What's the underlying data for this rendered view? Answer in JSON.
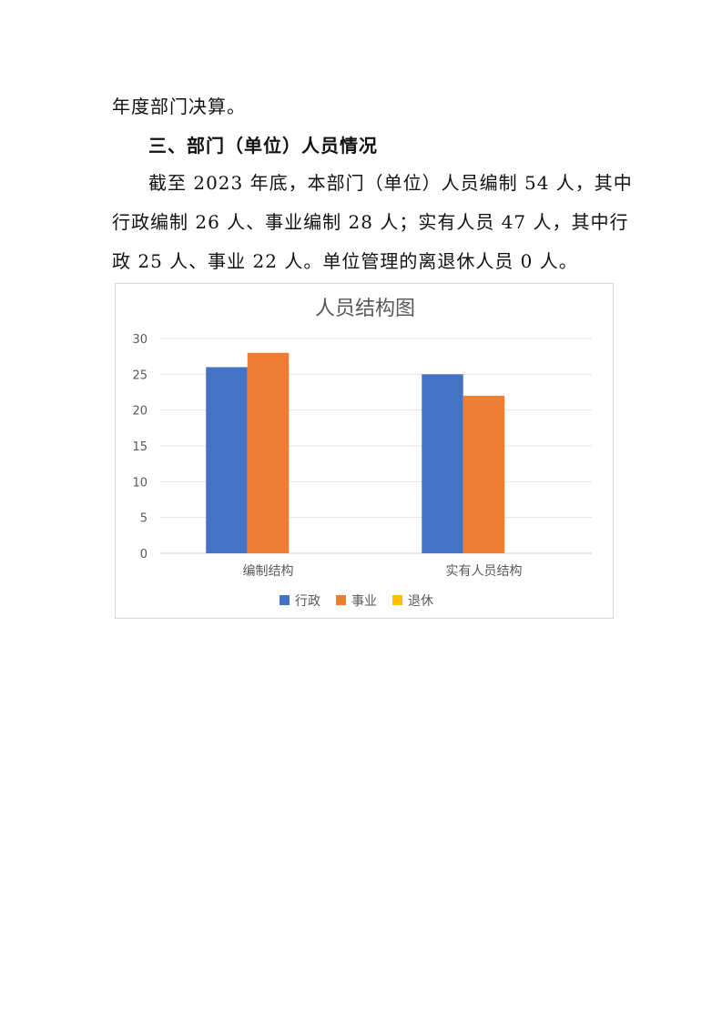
{
  "document": {
    "lines": [
      "年度部门决算。",
      "三、部门（单位）人员情况",
      "截至 2023 年底，本部门（单位）人员编制 54 人，其中",
      "行政编制 26 人、事业编制 28 人；实有人员 47 人，其中行",
      "政 25 人、事业 22 人。单位管理的离退休人员 0 人。"
    ]
  },
  "chart_data": {
    "type": "bar",
    "title": "人员结构图",
    "categories": [
      "编制结构",
      "实有人员结构"
    ],
    "series": [
      {
        "name": "行政",
        "values": [
          26,
          25
        ],
        "color": "#4472C4"
      },
      {
        "name": "事业",
        "values": [
          28,
          22
        ],
        "color": "#ED7D31"
      },
      {
        "name": "退休",
        "values": [
          0,
          0
        ],
        "color": "#FFC000"
      }
    ],
    "ylim": [
      0,
      30
    ],
    "yticks": [
      "0",
      "5",
      "10",
      "15",
      "20",
      "25",
      "30"
    ],
    "grid": true,
    "legend": "bottom"
  }
}
